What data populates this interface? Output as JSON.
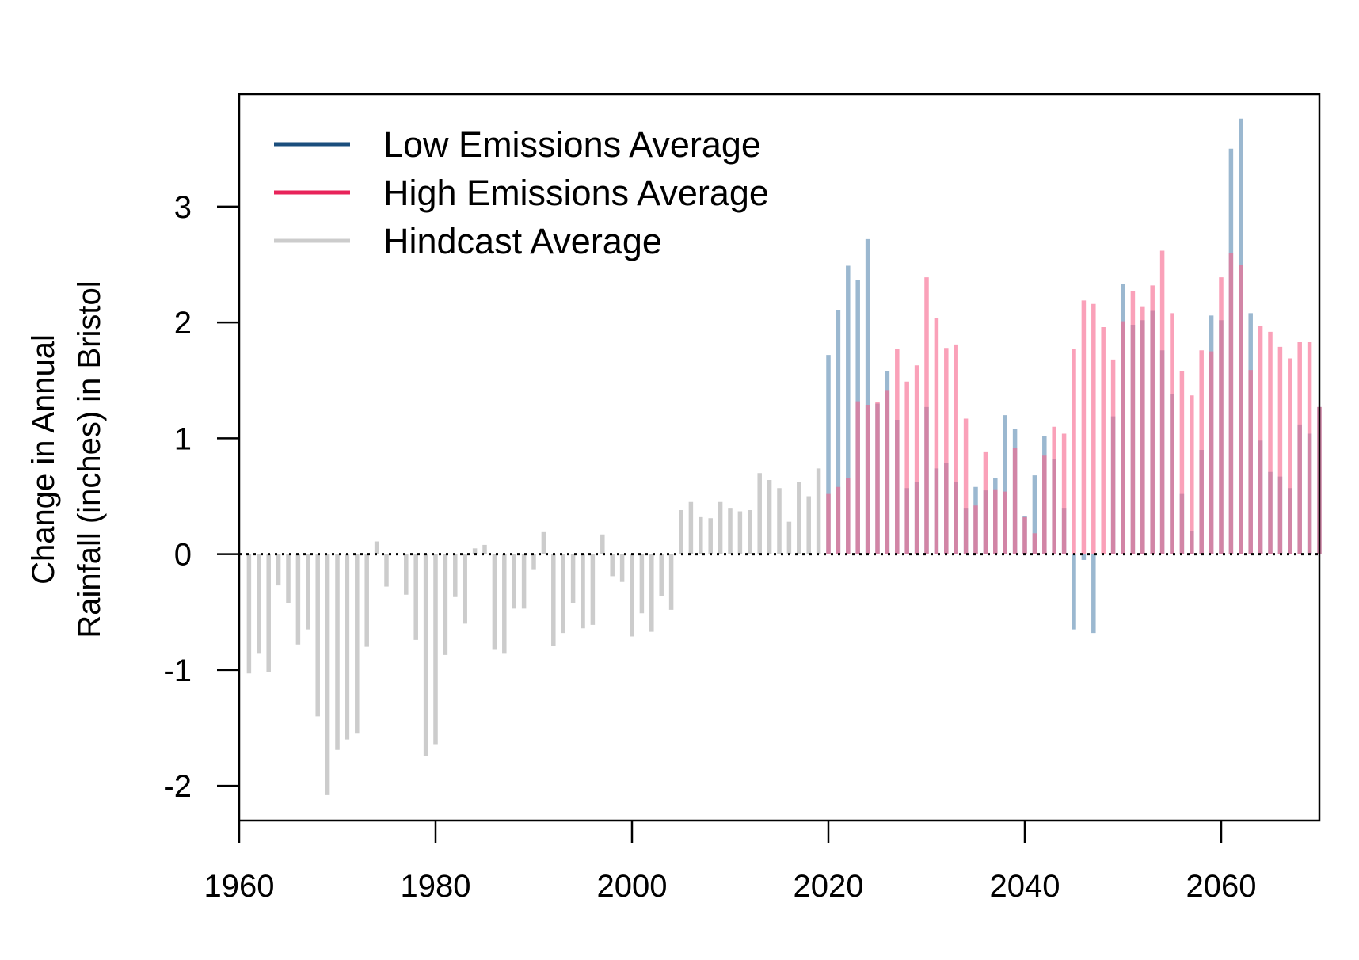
{
  "chart_data": {
    "type": "bar",
    "title": "",
    "xlabel": "",
    "ylabel": [
      "Change in Annual",
      "Rainfall (inches) in Bristol"
    ],
    "xlim": [
      1960,
      2070
    ],
    "ylim": [
      -2.3,
      3.97
    ],
    "xticks": [
      1960,
      1980,
      2000,
      2020,
      2040,
      2060
    ],
    "yticks": [
      -2,
      -1,
      0,
      1,
      2,
      3
    ],
    "zero_line": "dotted",
    "grid": false,
    "legend_position": "top-left",
    "series": [
      {
        "name": "Low Emissions Average",
        "color": "#1a4e7d",
        "bar_color": "rgba(88,137,176,0.6)",
        "x": [
          2020,
          2021,
          2022,
          2023,
          2024,
          2025,
          2026,
          2027,
          2028,
          2029,
          2030,
          2031,
          2032,
          2033,
          2034,
          2035,
          2036,
          2037,
          2038,
          2039,
          2040,
          2041,
          2042,
          2043,
          2044,
          2045,
          2046,
          2047,
          2048,
          2049,
          2050,
          2051,
          2052,
          2053,
          2054,
          2055,
          2056,
          2057,
          2058,
          2059,
          2060,
          2061,
          2062,
          2063,
          2064,
          2065,
          2066,
          2067,
          2068,
          2069,
          2070
        ],
        "values": [
          1.72,
          2.11,
          2.49,
          2.37,
          2.72,
          1.3,
          1.58,
          1.16,
          0.57,
          0.62,
          1.27,
          0.74,
          0.79,
          0.62,
          0.4,
          0.58,
          0.55,
          0.66,
          1.2,
          1.08,
          0.33,
          0.68,
          1.02,
          0.82,
          0.4,
          -0.65,
          -0.05,
          -0.68,
          0.0,
          1.19,
          2.33,
          1.98,
          2.02,
          2.1,
          1.76,
          1.38,
          0.52,
          0.2,
          0.9,
          2.06,
          2.02,
          3.5,
          3.76,
          2.08,
          0.98,
          0.71,
          0.67,
          0.57,
          1.12,
          1.04,
          1.27
        ]
      },
      {
        "name": "High Emissions Average",
        "color": "#e8235a",
        "bar_color": "rgba(247,98,139,0.6)",
        "x": [
          2020,
          2021,
          2022,
          2023,
          2024,
          2025,
          2026,
          2027,
          2028,
          2029,
          2030,
          2031,
          2032,
          2033,
          2034,
          2035,
          2036,
          2037,
          2038,
          2039,
          2040,
          2041,
          2042,
          2043,
          2044,
          2045,
          2046,
          2047,
          2048,
          2049,
          2050,
          2051,
          2052,
          2053,
          2054,
          2055,
          2056,
          2057,
          2058,
          2059,
          2060,
          2061,
          2062,
          2063,
          2064,
          2065,
          2066,
          2067,
          2068,
          2069,
          2070
        ],
        "values": [
          0.52,
          0.58,
          0.66,
          1.32,
          1.29,
          1.31,
          1.41,
          1.77,
          1.49,
          1.63,
          2.39,
          2.04,
          1.78,
          1.81,
          1.17,
          0.42,
          0.88,
          0.56,
          0.54,
          0.92,
          0.32,
          0.18,
          0.85,
          1.1,
          1.04,
          1.77,
          2.19,
          2.16,
          1.96,
          1.68,
          2.01,
          2.27,
          2.14,
          2.32,
          2.62,
          2.08,
          1.58,
          1.37,
          1.76,
          1.75,
          2.39,
          2.6,
          2.5,
          1.59,
          1.97,
          1.92,
          1.79,
          1.69,
          1.83,
          1.83,
          1.27
        ]
      },
      {
        "name": "Hindcast Average",
        "color": "#cccccc",
        "bar_color": "#cccccc",
        "x": [
          1961,
          1962,
          1963,
          1964,
          1965,
          1966,
          1967,
          1968,
          1969,
          1970,
          1971,
          1972,
          1973,
          1974,
          1975,
          1976,
          1977,
          1978,
          1979,
          1980,
          1981,
          1982,
          1983,
          1984,
          1985,
          1986,
          1987,
          1988,
          1989,
          1990,
          1991,
          1992,
          1993,
          1994,
          1995,
          1996,
          1997,
          1998,
          1999,
          2000,
          2001,
          2002,
          2003,
          2004,
          2005,
          2006,
          2007,
          2008,
          2009,
          2010,
          2011,
          2012,
          2013,
          2014,
          2015,
          2016,
          2017,
          2018,
          2019
        ],
        "values": [
          -1.03,
          -0.86,
          -1.02,
          -0.27,
          -0.42,
          -0.78,
          -0.65,
          -1.4,
          -2.08,
          -1.69,
          -1.6,
          -1.55,
          -0.8,
          0.11,
          -0.28,
          0.0,
          -0.35,
          -0.74,
          -1.74,
          -1.64,
          -0.87,
          -0.37,
          -0.6,
          0.05,
          0.08,
          -0.82,
          -0.86,
          -0.47,
          -0.47,
          -0.13,
          0.19,
          -0.79,
          -0.68,
          -0.42,
          -0.64,
          -0.61,
          0.17,
          -0.19,
          -0.24,
          -0.71,
          -0.51,
          -0.67,
          -0.36,
          -0.48,
          0.38,
          0.45,
          0.32,
          0.31,
          0.45,
          0.4,
          0.37,
          0.38,
          0.7,
          0.64,
          0.57,
          0.28,
          0.62,
          0.5,
          0.74
        ]
      }
    ]
  }
}
